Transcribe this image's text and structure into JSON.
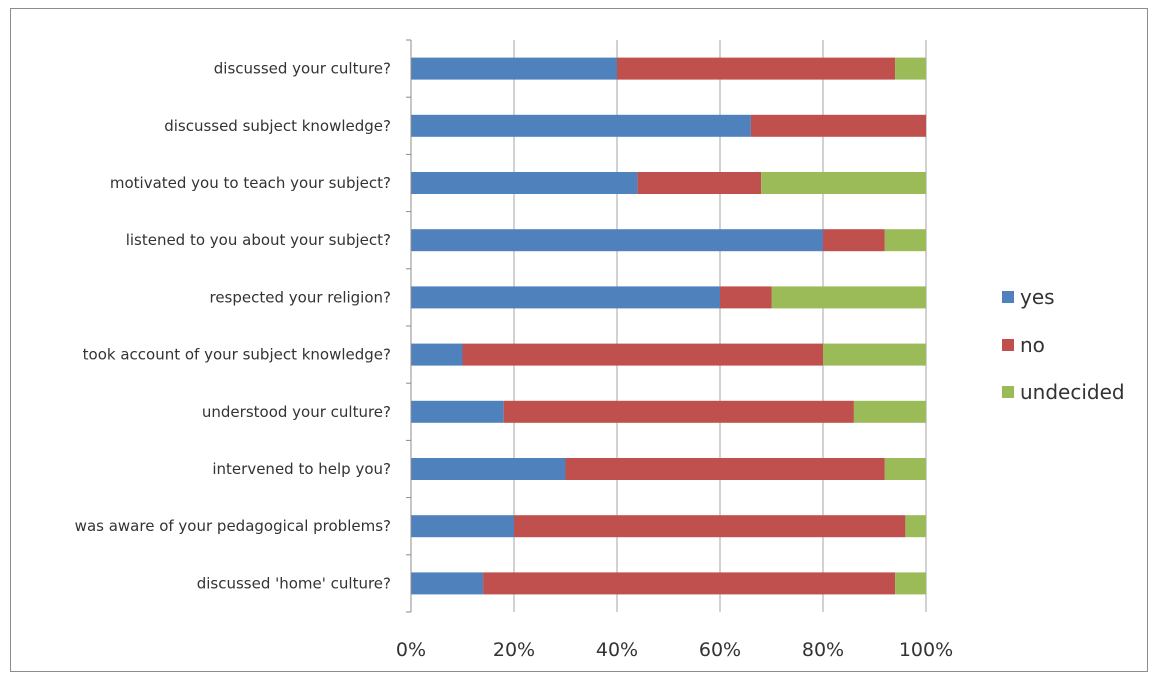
{
  "chart_data": {
    "type": "bar",
    "orientation": "horizontal",
    "stacked": "percent",
    "categories": [
      "discussed your culture?",
      "discussed subject knowledge?",
      "motivated you to teach your subject?",
      "listened to you about your subject?",
      "respected your religion?",
      "took account of your subject knowledge?",
      "understood your culture?",
      "intervened to help you?",
      "was aware of your pedagogical problems?",
      "discussed 'home' culture?"
    ],
    "series": [
      {
        "name": "yes",
        "color": "#4f81bd",
        "values": [
          40,
          66,
          44,
          80,
          60,
          10,
          18,
          30,
          20,
          14
        ]
      },
      {
        "name": "no",
        "color": "#c0504d",
        "values": [
          54,
          34,
          24,
          12,
          10,
          70,
          68,
          62,
          76,
          80
        ]
      },
      {
        "name": "undecided",
        "color": "#9bbb59",
        "values": [
          6,
          0,
          32,
          8,
          30,
          20,
          14,
          8,
          4,
          6
        ]
      }
    ],
    "xlim": [
      0,
      100
    ],
    "x_ticks": [
      "0%",
      "20%",
      "40%",
      "60%",
      "80%",
      "100%"
    ],
    "grid": "vertical",
    "legend": "right"
  }
}
